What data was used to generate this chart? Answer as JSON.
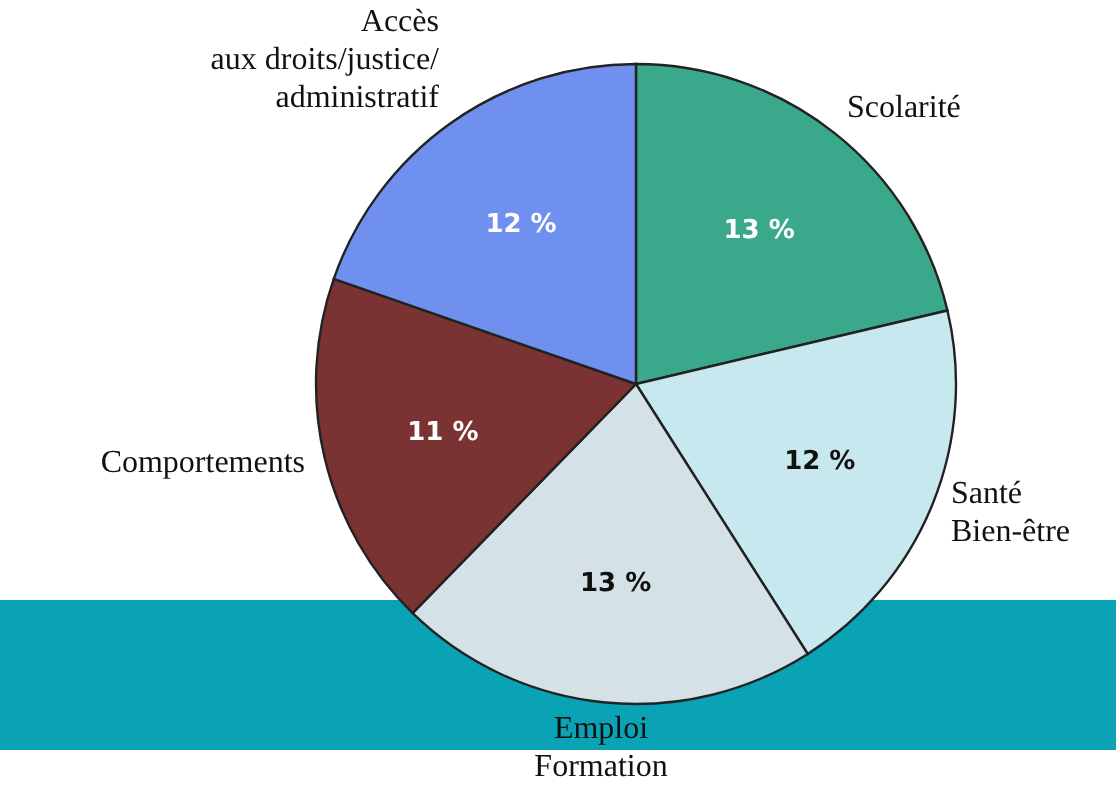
{
  "chart_data": {
    "type": "pie",
    "categories": [
      "Scolarité",
      "Santé\nBien-être",
      "Emploi\nFormation",
      "Comportements",
      "Accès\naux droits/justice/\nadministratif"
    ],
    "values": [
      13,
      12,
      13,
      11,
      12
    ],
    "value_labels": [
      "13 %",
      "12 %",
      "13 %",
      "11 %",
      "12 %"
    ],
    "colors": [
      "#3aa88a",
      "#c6e8ee",
      "#d4e2e8",
      "#7a3232",
      "#6f90ee"
    ]
  }
}
